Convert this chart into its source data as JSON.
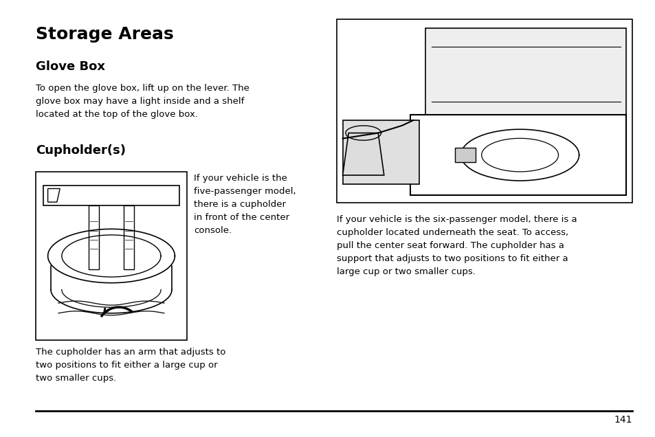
{
  "bg_color": "#ffffff",
  "text_color": "#000000",
  "title": "Storage Areas",
  "subtitle1": "Glove Box",
  "subtitle2": "Cupholder(s)",
  "glove_box_text": "To open the glove box, lift up on the lever. The\nglove box may have a light inside and a shelf\nlocated at the top of the glove box.",
  "cupholder_text_right": "If your vehicle is the\nfive-passenger model,\nthere is a cupholder\nin front of the center\nconsole.",
  "cupholder_text_below": "The cupholder has an arm that adjusts to\ntwo positions to fit either a large cup or\ntwo smaller cups.",
  "right_text": "If your vehicle is the six-passenger model, there is a\ncupholder located underneath the seat. To access,\npull the center seat forward. The cupholder has a\nsupport that adjusts to two positions to fit either a\nlarge cup or two smaller cups.",
  "page_number": "141",
  "figw": 9.54,
  "figh": 6.36,
  "dpi": 100
}
